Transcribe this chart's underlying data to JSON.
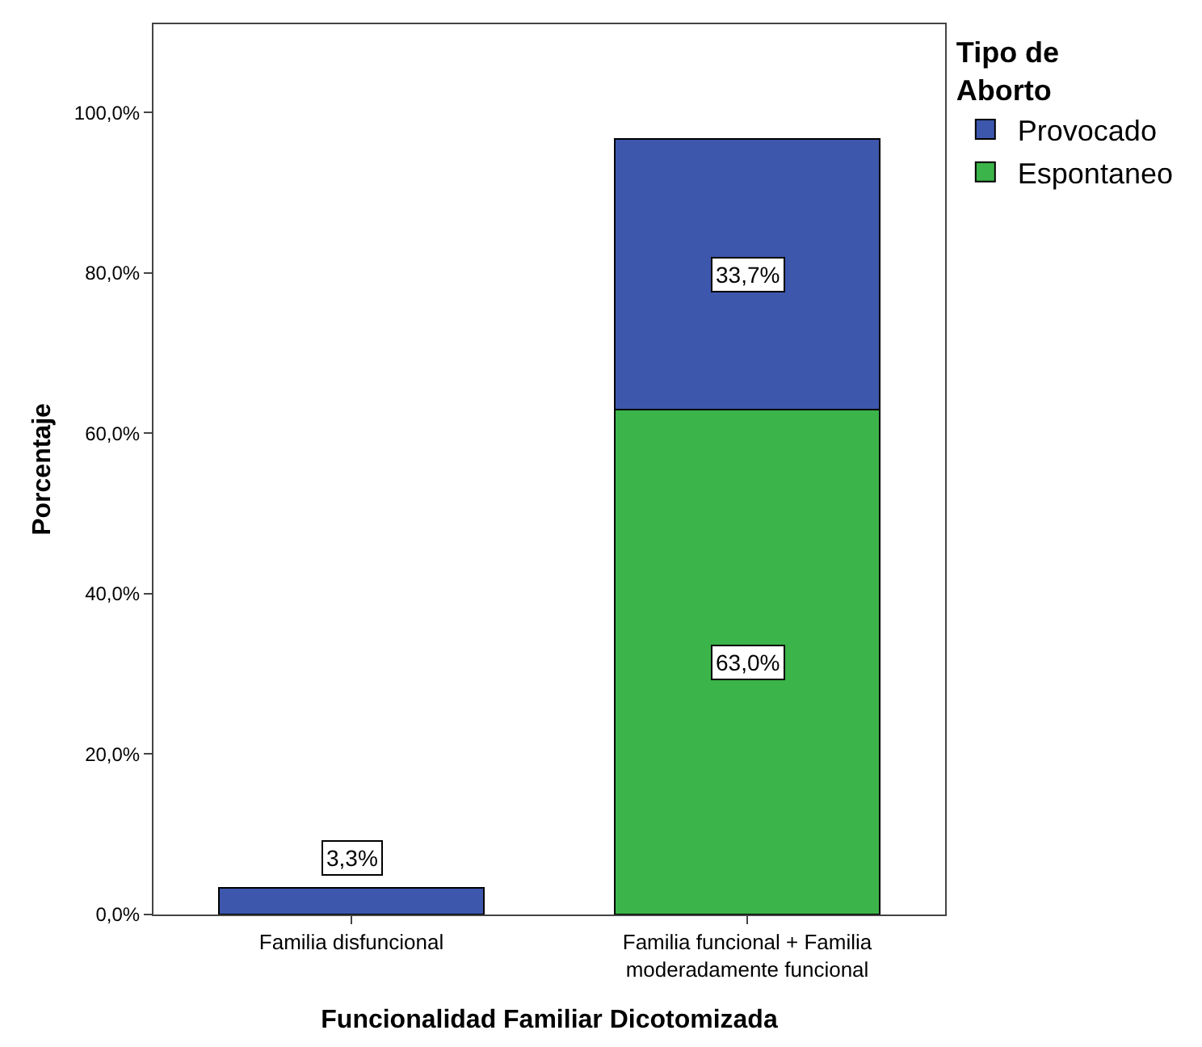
{
  "chart_data": {
    "type": "bar",
    "stacked": true,
    "xlabel": "Funcionalidad Familiar Dicotomizada",
    "ylabel": "Porcentaje",
    "legend_title": "Tipo de Aborto",
    "legend": "top right",
    "categories": [
      "Familia disfuncional",
      "Familia funcional + Familia moderadamente funcional"
    ],
    "series": [
      {
        "name": "Espontaneo",
        "color": "#3bb44a",
        "values": [
          null,
          63.0
        ],
        "value_labels": [
          null,
          "63,0%"
        ]
      },
      {
        "name": "Provocado",
        "color": "#3d57ad",
        "values": [
          3.3,
          33.7
        ],
        "value_labels": [
          "3,3%",
          "33,7%"
        ]
      }
    ],
    "ylim": [
      0,
      111
    ],
    "yticks": [
      {
        "value": 0,
        "label": "0,0%"
      },
      {
        "value": 20,
        "label": "20,0%"
      },
      {
        "value": 40,
        "label": "40,0%"
      },
      {
        "value": 60,
        "label": "60,0%"
      },
      {
        "value": 80,
        "label": "80,0%"
      },
      {
        "value": 100,
        "label": "100,0%"
      }
    ],
    "grid": false
  }
}
